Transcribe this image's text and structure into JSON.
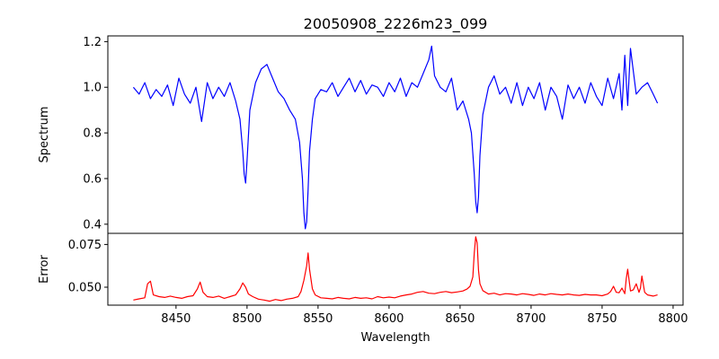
{
  "chart_data": [
    {
      "type": "line",
      "panel": "spectrum",
      "title": "20050908_2226m23_099",
      "xlabel": "",
      "ylabel": "Spectrum",
      "xlim": [
        8402,
        8807
      ],
      "ylim": [
        0.36,
        1.225
      ],
      "yticks": [
        0.4,
        0.6,
        0.8,
        1.0,
        1.2
      ],
      "ytick_labels": [
        "0.4",
        "0.6",
        "0.8",
        "1.0",
        "1.2"
      ],
      "grid": false,
      "series": [
        {
          "color": "#0000ff",
          "x": [
            8420,
            8424,
            8428,
            8432,
            8436,
            8440,
            8444,
            8448,
            8452,
            8456,
            8460,
            8464,
            8468,
            8472,
            8476,
            8480,
            8484,
            8488,
            8492,
            8495,
            8497,
            8498,
            8499,
            8500,
            8502,
            8506,
            8510,
            8514,
            8518,
            8522,
            8526,
            8530,
            8534,
            8537,
            8539,
            8540,
            8541,
            8542,
            8543,
            8544,
            8546,
            8548,
            8552,
            8556,
            8560,
            8564,
            8568,
            8572,
            8576,
            8580,
            8584,
            8588,
            8592,
            8596,
            8600,
            8604,
            8608,
            8612,
            8616,
            8620,
            8624,
            8628,
            8630,
            8632,
            8636,
            8640,
            8644,
            8648,
            8652,
            8656,
            8658,
            8660,
            8661,
            8662,
            8663,
            8664,
            8666,
            8670,
            8674,
            8678,
            8682,
            8686,
            8690,
            8694,
            8698,
            8702,
            8706,
            8710,
            8714,
            8718,
            8722,
            8726,
            8730,
            8734,
            8738,
            8742,
            8746,
            8750,
            8754,
            8758,
            8762,
            8764,
            8766,
            8768,
            8770,
            8774,
            8778,
            8782,
            8786,
            8789
          ],
          "values": [
            1.0,
            0.97,
            1.02,
            0.95,
            0.99,
            0.96,
            1.01,
            0.92,
            1.04,
            0.97,
            0.93,
            1.0,
            0.85,
            1.02,
            0.95,
            1.0,
            0.96,
            1.02,
            0.94,
            0.86,
            0.72,
            0.62,
            0.58,
            0.68,
            0.9,
            1.02,
            1.08,
            1.1,
            1.04,
            0.98,
            0.95,
            0.9,
            0.86,
            0.76,
            0.6,
            0.45,
            0.38,
            0.41,
            0.55,
            0.72,
            0.86,
            0.95,
            0.99,
            0.98,
            1.02,
            0.96,
            1.0,
            1.04,
            0.98,
            1.03,
            0.97,
            1.01,
            1.0,
            0.96,
            1.02,
            0.98,
            1.04,
            0.96,
            1.02,
            1.0,
            1.06,
            1.12,
            1.18,
            1.05,
            1.0,
            0.98,
            1.04,
            0.9,
            0.94,
            0.86,
            0.8,
            0.62,
            0.5,
            0.45,
            0.52,
            0.7,
            0.88,
            1.0,
            1.05,
            0.97,
            1.0,
            0.93,
            1.02,
            0.92,
            1.0,
            0.95,
            1.02,
            0.9,
            1.0,
            0.96,
            0.86,
            1.01,
            0.95,
            1.0,
            0.93,
            1.02,
            0.96,
            0.92,
            1.04,
            0.95,
            1.06,
            0.9,
            1.14,
            0.92,
            1.17,
            0.97,
            1.0,
            1.02,
            0.97,
            0.93
          ]
        }
      ]
    },
    {
      "type": "line",
      "panel": "error",
      "title": "",
      "xlabel": "Wavelength",
      "ylabel": "Error",
      "xlim": [
        8402,
        8807
      ],
      "ylim": [
        0.0395,
        0.0815
      ],
      "xticks": [
        8450,
        8500,
        8550,
        8600,
        8650,
        8700,
        8750,
        8800
      ],
      "xtick_labels": [
        "8450",
        "8500",
        "8550",
        "8600",
        "8650",
        "8700",
        "8750",
        "8800"
      ],
      "yticks": [
        0.05,
        0.075
      ],
      "ytick_labels": [
        "0.050",
        "0.075"
      ],
      "grid": false,
      "series": [
        {
          "color": "#ff0000",
          "x": [
            8420,
            8424,
            8428,
            8430,
            8432,
            8434,
            8438,
            8442,
            8446,
            8450,
            8454,
            8458,
            8462,
            8465,
            8467,
            8469,
            8472,
            8476,
            8480,
            8484,
            8488,
            8492,
            8495,
            8497,
            8499,
            8501,
            8504,
            8508,
            8512,
            8516,
            8520,
            8524,
            8528,
            8532,
            8536,
            8538,
            8540,
            8542,
            8543,
            8544,
            8546,
            8548,
            8552,
            8556,
            8560,
            8564,
            8568,
            8572,
            8576,
            8580,
            8584,
            8588,
            8592,
            8596,
            8600,
            8604,
            8608,
            8612,
            8616,
            8620,
            8624,
            8628,
            8632,
            8636,
            8640,
            8644,
            8648,
            8652,
            8655,
            8657,
            8659,
            8660,
            8661,
            8662,
            8663,
            8664,
            8666,
            8670,
            8674,
            8678,
            8682,
            8686,
            8690,
            8694,
            8698,
            8702,
            8706,
            8710,
            8714,
            8718,
            8722,
            8726,
            8730,
            8734,
            8738,
            8742,
            8746,
            8750,
            8754,
            8756,
            8758,
            8760,
            8762,
            8764,
            8766,
            8767,
            8768,
            8770,
            8772,
            8774,
            8776,
            8777,
            8778,
            8780,
            8782,
            8786,
            8789
          ],
          "values": [
            0.0425,
            0.0432,
            0.0438,
            0.052,
            0.0535,
            0.0455,
            0.0445,
            0.044,
            0.0448,
            0.044,
            0.0435,
            0.0445,
            0.045,
            0.049,
            0.053,
            0.047,
            0.0445,
            0.044,
            0.0448,
            0.0435,
            0.0445,
            0.0455,
            0.049,
            0.0525,
            0.05,
            0.046,
            0.0445,
            0.043,
            0.0425,
            0.0418,
            0.0428,
            0.0422,
            0.043,
            0.0435,
            0.0445,
            0.0475,
            0.054,
            0.0625,
            0.07,
            0.0605,
            0.049,
            0.0455,
            0.0438,
            0.0435,
            0.0432,
            0.044,
            0.0435,
            0.0432,
            0.044,
            0.0435,
            0.0438,
            0.0432,
            0.0445,
            0.0438,
            0.0442,
            0.0438,
            0.0448,
            0.0455,
            0.046,
            0.047,
            0.0475,
            0.0465,
            0.0462,
            0.047,
            0.0475,
            0.0468,
            0.0472,
            0.0478,
            0.049,
            0.0505,
            0.056,
            0.07,
            0.0795,
            0.076,
            0.06,
            0.052,
            0.048,
            0.046,
            0.0465,
            0.0455,
            0.0462,
            0.046,
            0.0455,
            0.0462,
            0.0458,
            0.0452,
            0.046,
            0.0455,
            0.0462,
            0.0458,
            0.0455,
            0.046,
            0.0455,
            0.0452,
            0.0458,
            0.0455,
            0.0455,
            0.045,
            0.046,
            0.0475,
            0.0505,
            0.047,
            0.0468,
            0.0495,
            0.0462,
            0.055,
            0.0605,
            0.0478,
            0.0485,
            0.052,
            0.047,
            0.0495,
            0.0565,
            0.047,
            0.0455,
            0.0448,
            0.0455
          ]
        }
      ]
    }
  ]
}
